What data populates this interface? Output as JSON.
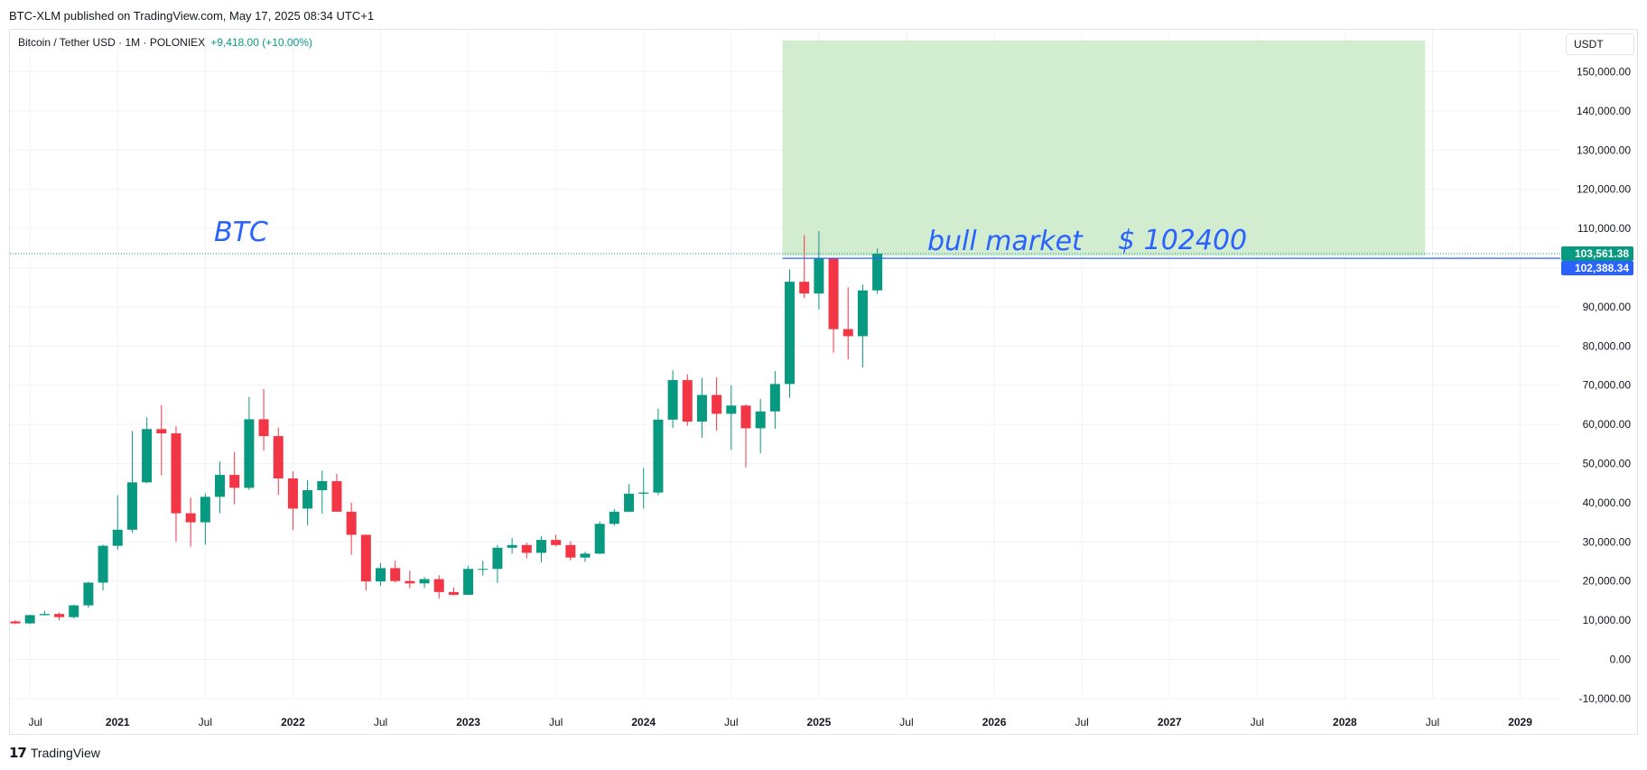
{
  "header": {
    "published": "BTC-XLM published on TradingView.com, May 17, 2025 08:34 UTC+1"
  },
  "legend": {
    "symbol": "Bitcoin / Tether USD · 1M · POLONIEX",
    "change": "+9,418.00 (+10.00%)"
  },
  "currency_button": "USDT",
  "footer": {
    "logo_icon": "tradingview-logo-icon",
    "brand": "TradingView"
  },
  "colors": {
    "up": "#089981",
    "down": "#f23645",
    "annotation": "#2962ff",
    "highlight_box": "#cdeacb",
    "horizontal_line": "#2962ff",
    "current_price_tag": "#089981",
    "line_price_tag": "#2962ff",
    "grid": "#f0f3fa"
  },
  "chart_data": {
    "type": "candlestick",
    "interval": "1M",
    "ylim": [
      -14000,
      160000
    ],
    "xlim": [
      "2020-06",
      "2029-09"
    ],
    "y_ticks": [
      "-10,000.00",
      "0.00",
      "10,000.00",
      "20,000.00",
      "30,000.00",
      "40,000.00",
      "50,000.00",
      "60,000.00",
      "70,000.00",
      "80,000.00",
      "90,000.00",
      "100,000.00",
      "110,000.00",
      "120,000.00",
      "130,000.00",
      "140,000.00",
      "150,000.00"
    ],
    "x_ticks": [
      "Jul",
      "2021",
      "Jul",
      "2022",
      "Jul",
      "2023",
      "Jul",
      "2024",
      "Jul",
      "2025",
      "Jul",
      "2026",
      "Jul",
      "2027",
      "Jul",
      "2028",
      "Jul",
      "2029"
    ],
    "grid": true,
    "price_labels": [
      "103,561.38",
      "102,388.34"
    ],
    "annotations": {
      "btc": "BTC",
      "bull_market": "bull market",
      "price": "$ 102400"
    },
    "highlight_box": {
      "from": "2024-11",
      "to": "2028-06",
      "y_low": 103000,
      "y_high": 158000
    },
    "horizontal_line": 102388.34,
    "current_price": 103561.38,
    "candles": [
      {
        "t": "2020-06",
        "o": 9700,
        "h": 10000,
        "l": 9000,
        "c": 9200
      },
      {
        "t": "2020-07",
        "o": 9200,
        "h": 11400,
        "l": 9000,
        "c": 11300
      },
      {
        "t": "2020-08",
        "o": 11300,
        "h": 12400,
        "l": 11200,
        "c": 11600
      },
      {
        "t": "2020-09",
        "o": 11600,
        "h": 12000,
        "l": 10000,
        "c": 10800
      },
      {
        "t": "2020-10",
        "o": 10800,
        "h": 14000,
        "l": 10500,
        "c": 13800
      },
      {
        "t": "2020-11",
        "o": 13800,
        "h": 19800,
        "l": 13200,
        "c": 19600
      },
      {
        "t": "2020-12",
        "o": 19600,
        "h": 29300,
        "l": 17600,
        "c": 29000
      },
      {
        "t": "2021-01",
        "o": 29000,
        "h": 41900,
        "l": 28000,
        "c": 33100
      },
      {
        "t": "2021-02",
        "o": 33100,
        "h": 58300,
        "l": 32300,
        "c": 45200
      },
      {
        "t": "2021-03",
        "o": 45200,
        "h": 61800,
        "l": 45000,
        "c": 58800
      },
      {
        "t": "2021-04",
        "o": 58800,
        "h": 64900,
        "l": 47000,
        "c": 57700
      },
      {
        "t": "2021-05",
        "o": 57700,
        "h": 59500,
        "l": 30000,
        "c": 37300
      },
      {
        "t": "2021-06",
        "o": 37300,
        "h": 41300,
        "l": 28800,
        "c": 35000
      },
      {
        "t": "2021-07",
        "o": 35000,
        "h": 42400,
        "l": 29300,
        "c": 41500
      },
      {
        "t": "2021-08",
        "o": 41500,
        "h": 50500,
        "l": 37300,
        "c": 47100
      },
      {
        "t": "2021-09",
        "o": 47100,
        "h": 52900,
        "l": 39600,
        "c": 43800
      },
      {
        "t": "2021-10",
        "o": 43800,
        "h": 67000,
        "l": 43300,
        "c": 61300
      },
      {
        "t": "2021-11",
        "o": 61300,
        "h": 69000,
        "l": 53300,
        "c": 57000
      },
      {
        "t": "2021-12",
        "o": 57000,
        "h": 59100,
        "l": 42000,
        "c": 46200
      },
      {
        "t": "2022-01",
        "o": 46200,
        "h": 48000,
        "l": 33000,
        "c": 38500
      },
      {
        "t": "2022-02",
        "o": 38500,
        "h": 45800,
        "l": 34300,
        "c": 43200
      },
      {
        "t": "2022-03",
        "o": 43200,
        "h": 48200,
        "l": 37200,
        "c": 45500
      },
      {
        "t": "2022-04",
        "o": 45500,
        "h": 47400,
        "l": 37700,
        "c": 37700
      },
      {
        "t": "2022-05",
        "o": 37700,
        "h": 40000,
        "l": 26700,
        "c": 31800
      },
      {
        "t": "2022-06",
        "o": 31800,
        "h": 31900,
        "l": 17600,
        "c": 19900
      },
      {
        "t": "2022-07",
        "o": 19900,
        "h": 24600,
        "l": 18800,
        "c": 23300
      },
      {
        "t": "2022-08",
        "o": 23300,
        "h": 25200,
        "l": 19600,
        "c": 20000
      },
      {
        "t": "2022-09",
        "o": 20000,
        "h": 22700,
        "l": 18200,
        "c": 19400
      },
      {
        "t": "2022-10",
        "o": 19400,
        "h": 21000,
        "l": 18200,
        "c": 20500
      },
      {
        "t": "2022-11",
        "o": 20500,
        "h": 21500,
        "l": 15500,
        "c": 17200
      },
      {
        "t": "2022-12",
        "o": 17200,
        "h": 18400,
        "l": 16300,
        "c": 16500
      },
      {
        "t": "2023-01",
        "o": 16500,
        "h": 23900,
        "l": 16500,
        "c": 23100
      },
      {
        "t": "2023-02",
        "o": 23100,
        "h": 25200,
        "l": 21400,
        "c": 23100
      },
      {
        "t": "2023-03",
        "o": 23100,
        "h": 29200,
        "l": 19500,
        "c": 28500
      },
      {
        "t": "2023-04",
        "o": 28500,
        "h": 31000,
        "l": 27000,
        "c": 29200
      },
      {
        "t": "2023-05",
        "o": 29200,
        "h": 29800,
        "l": 25800,
        "c": 27200
      },
      {
        "t": "2023-06",
        "o": 27200,
        "h": 31400,
        "l": 24800,
        "c": 30500
      },
      {
        "t": "2023-07",
        "o": 30500,
        "h": 31800,
        "l": 28900,
        "c": 29200
      },
      {
        "t": "2023-08",
        "o": 29200,
        "h": 30200,
        "l": 25300,
        "c": 26000
      },
      {
        "t": "2023-09",
        "o": 26000,
        "h": 27500,
        "l": 24900,
        "c": 27000
      },
      {
        "t": "2023-10",
        "o": 27000,
        "h": 35200,
        "l": 26900,
        "c": 34600
      },
      {
        "t": "2023-11",
        "o": 34600,
        "h": 38400,
        "l": 34100,
        "c": 37700
      },
      {
        "t": "2023-12",
        "o": 37700,
        "h": 44700,
        "l": 37600,
        "c": 42300
      },
      {
        "t": "2024-01",
        "o": 42300,
        "h": 48900,
        "l": 38500,
        "c": 42600
      },
      {
        "t": "2024-02",
        "o": 42600,
        "h": 64000,
        "l": 41900,
        "c": 61200
      },
      {
        "t": "2024-03",
        "o": 61200,
        "h": 73800,
        "l": 59100,
        "c": 71300
      },
      {
        "t": "2024-04",
        "o": 71300,
        "h": 72800,
        "l": 59600,
        "c": 60700
      },
      {
        "t": "2024-05",
        "o": 60700,
        "h": 71900,
        "l": 56600,
        "c": 67500
      },
      {
        "t": "2024-06",
        "o": 67500,
        "h": 72000,
        "l": 58400,
        "c": 62700
      },
      {
        "t": "2024-07",
        "o": 62700,
        "h": 70000,
        "l": 53500,
        "c": 64800
      },
      {
        "t": "2024-08",
        "o": 64800,
        "h": 65100,
        "l": 49000,
        "c": 59000
      },
      {
        "t": "2024-09",
        "o": 59000,
        "h": 66500,
        "l": 52600,
        "c": 63300
      },
      {
        "t": "2024-10",
        "o": 63300,
        "h": 73600,
        "l": 58900,
        "c": 70300
      },
      {
        "t": "2024-11",
        "o": 70300,
        "h": 99600,
        "l": 66800,
        "c": 96400
      },
      {
        "t": "2024-12",
        "o": 96400,
        "h": 108300,
        "l": 92200,
        "c": 93400
      },
      {
        "t": "2025-01",
        "o": 93400,
        "h": 109300,
        "l": 89300,
        "c": 102400
      },
      {
        "t": "2025-02",
        "o": 102400,
        "h": 102500,
        "l": 78300,
        "c": 84300
      },
      {
        "t": "2025-03",
        "o": 84300,
        "h": 95000,
        "l": 76600,
        "c": 82500
      },
      {
        "t": "2025-04",
        "o": 82500,
        "h": 95700,
        "l": 74500,
        "c": 94200
      },
      {
        "t": "2025-05",
        "o": 94200,
        "h": 104900,
        "l": 93300,
        "c": 103561
      }
    ]
  }
}
